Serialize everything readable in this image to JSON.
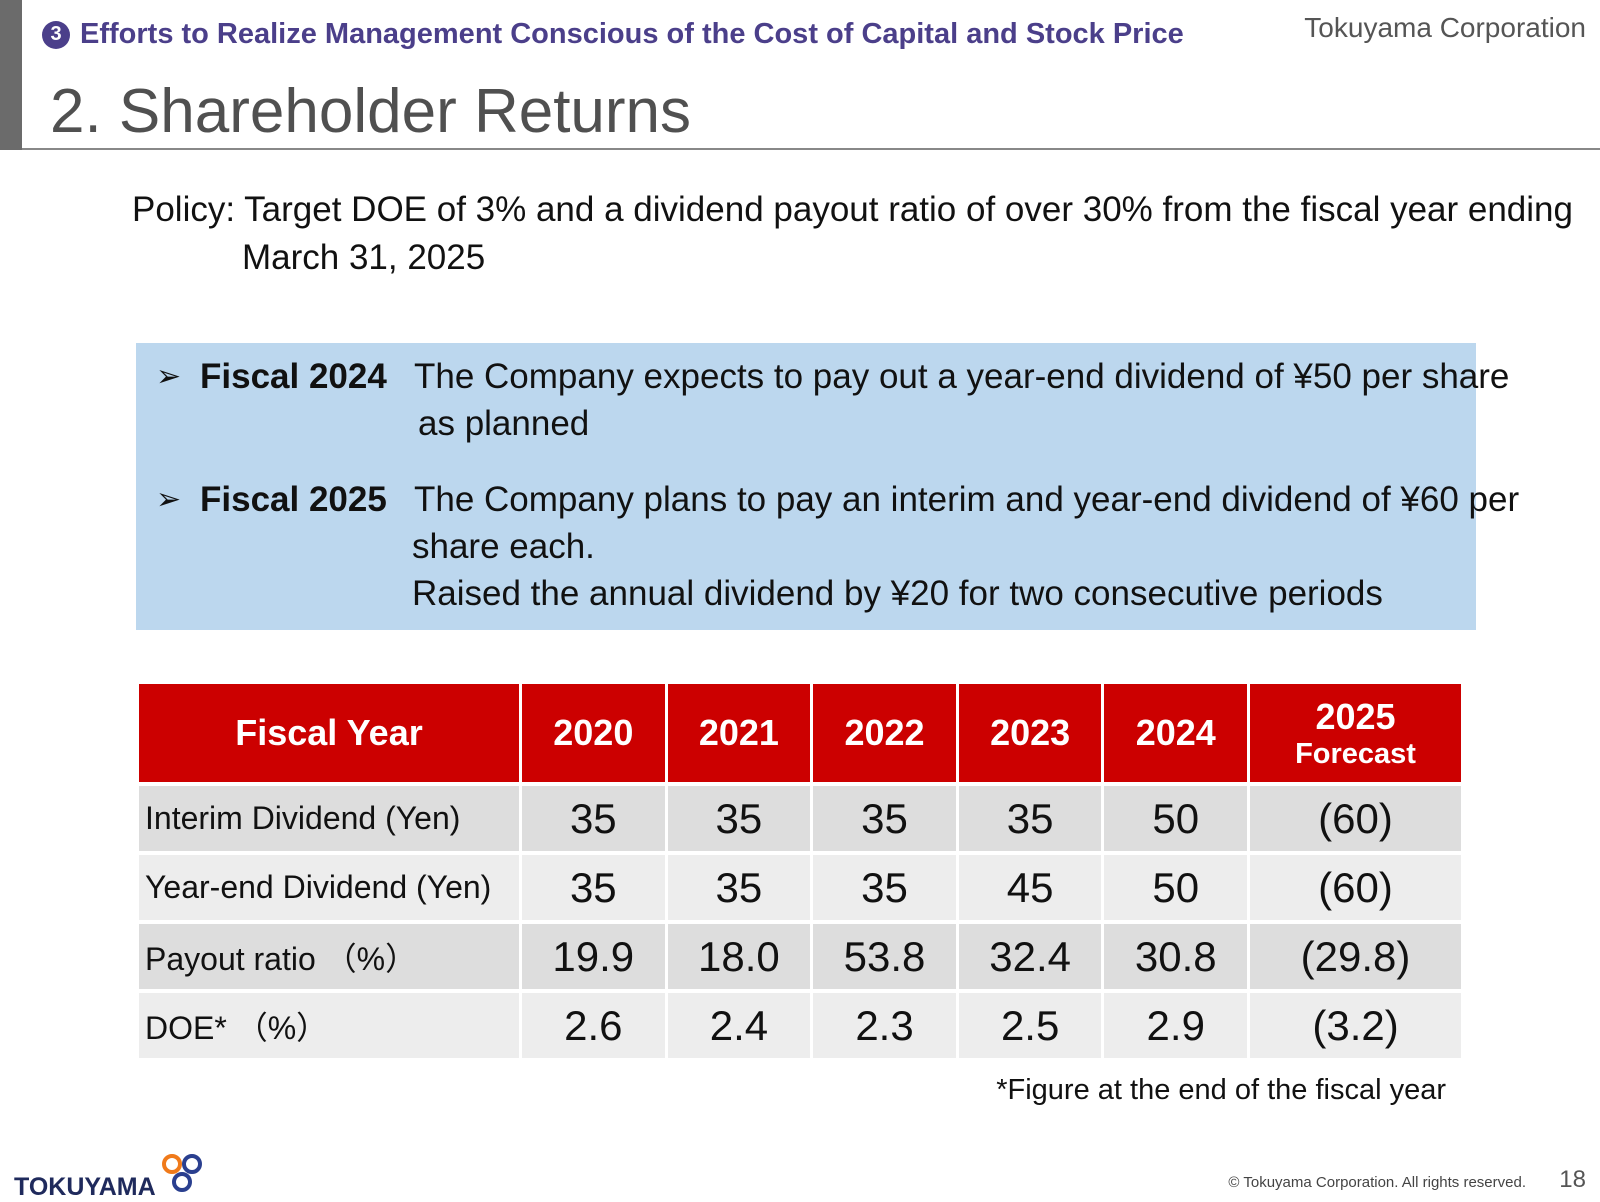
{
  "header": {
    "section_number": "3",
    "section_label": "Efforts to Realize Management Conscious of the Cost of Capital and Stock Price",
    "corporation": "Tokuyama Corporation",
    "title": "2. Shareholder Returns"
  },
  "policy": {
    "line1": "Policy: Target DOE of 3% and a dividend payout ratio of over 30% from the fiscal year ending",
    "line2": "March 31, 2025"
  },
  "highlights": [
    {
      "label": "Fiscal 2024",
      "lines": [
        "The Company expects to pay out a year-end dividend of ¥50 per share",
        "as planned"
      ]
    },
    {
      "label": "Fiscal 2025",
      "lines": [
        "The Company plans to pay an interim and year-end dividend of ¥60 per",
        "share each.",
        "Raised the annual dividend by ¥20  for two consecutive periods"
      ]
    }
  ],
  "table": {
    "header_label": "Fiscal Year",
    "years": [
      "2020",
      "2021",
      "2022",
      "2023",
      "2024",
      "2025"
    ],
    "forecast_label": "Forecast",
    "rows": [
      {
        "label": "Interim Dividend (Yen)",
        "values": [
          "35",
          "35",
          "35",
          "35",
          "50",
          "(60)"
        ]
      },
      {
        "label": "Year-end Dividend (Yen)",
        "values": [
          "35",
          "35",
          "35",
          "45",
          "50",
          "(60)"
        ]
      },
      {
        "label": "Payout ratio （%）",
        "values": [
          "19.9",
          "18.0",
          "53.8",
          "32.4",
          "30.8",
          "(29.8)"
        ]
      },
      {
        "label": "DOE* （%）",
        "values": [
          "2.6",
          "2.4",
          "2.3",
          "2.5",
          "2.9",
          "(3.2)"
        ]
      }
    ],
    "footnote": "*Figure at the end of the fiscal year"
  },
  "footer": {
    "logo_text": "TOKUYAMA",
    "copyright": "© Tokuyama Corporation. All rights reserved.",
    "page_number": "18"
  },
  "colors": {
    "header_purple": "#4b3f8a",
    "table_header_red": "#cc0000",
    "highlight_blue": "#bcd7ee"
  }
}
